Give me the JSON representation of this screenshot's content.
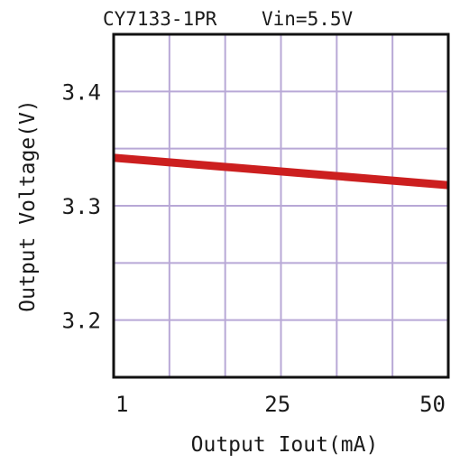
{
  "chart_data": {
    "type": "line",
    "title": "CY7133-1PR",
    "subtitle": "Vin=5.5V",
    "xlabel": "Output Iout(mA)",
    "ylabel": "Output Voltage(V)",
    "xlim": [
      1,
      50
    ],
    "ylim": [
      3.15,
      3.45
    ],
    "x_ticks": [
      1,
      25,
      50
    ],
    "x_tick_labels": [
      "1",
      "25",
      "50"
    ],
    "y_ticks": [
      3.2,
      3.3,
      3.4
    ],
    "y_tick_labels": [
      "3.2",
      "3.3",
      "3.4"
    ],
    "grid": true,
    "series": [
      {
        "x": [
          1,
          50
        ],
        "y": [
          3.342,
          3.318
        ],
        "color": "#cc1f1f"
      }
    ]
  },
  "colors": {
    "grid": "#b8a8d6",
    "frame": "#111111",
    "line": "#cc1f1f"
  }
}
